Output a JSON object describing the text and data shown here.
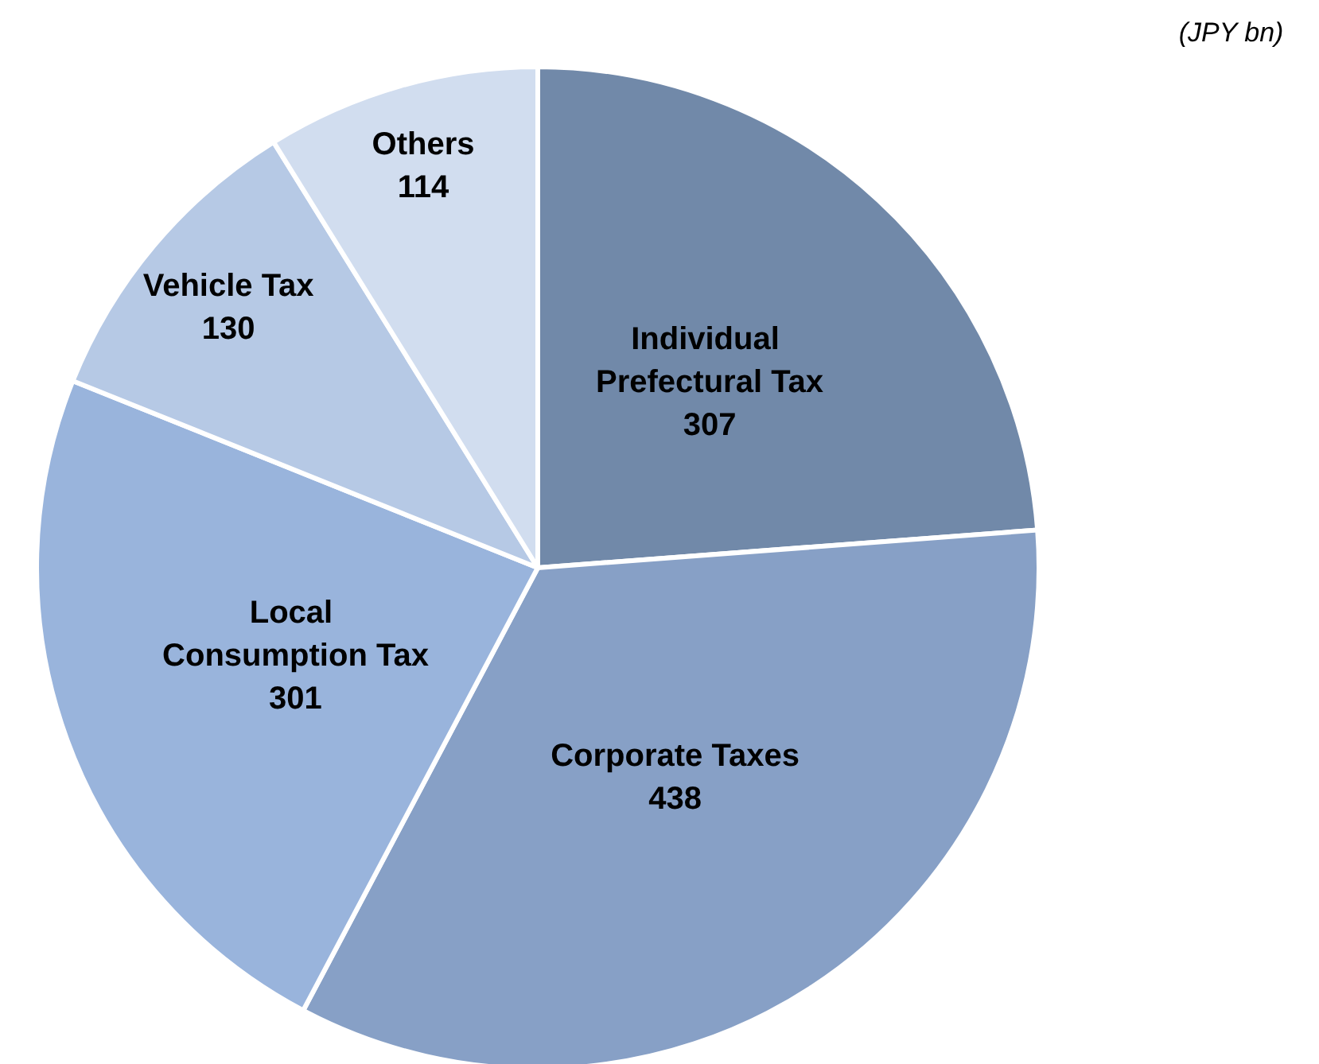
{
  "chart_data": {
    "type": "pie",
    "categories": [
      "Individual Prefectural Tax",
      "Corporate Taxes",
      "Local Consumption Tax",
      "Vehicle Tax",
      "Others"
    ],
    "values": [
      307,
      438,
      301,
      130,
      114
    ],
    "colors": [
      "#7189a9",
      "#87a0c6",
      "#99b4dc",
      "#b6c9e5",
      "#d1ddef"
    ],
    "data_labels": true,
    "legend": false,
    "annotations": [
      "(JPY bn)"
    ]
  }
}
